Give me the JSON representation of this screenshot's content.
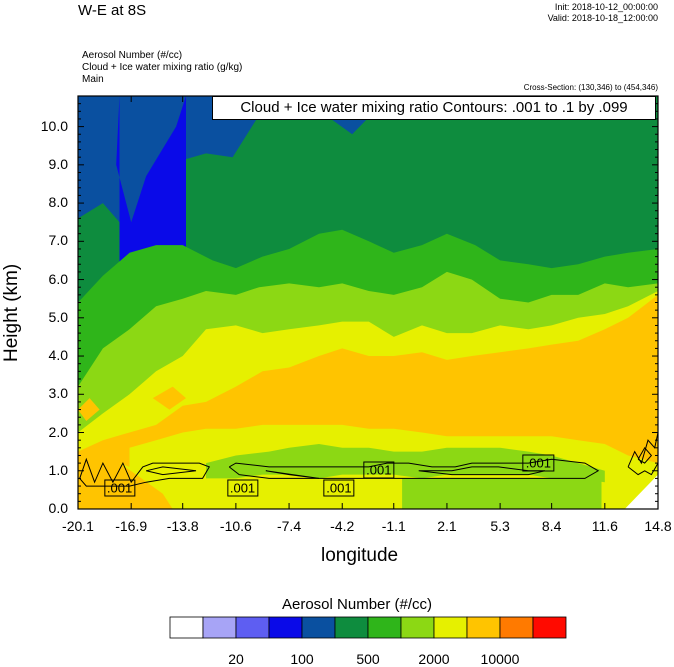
{
  "header": {
    "title": "W-E at 8S",
    "init": "Init: 2018-10-12_00:00:00",
    "valid": "Valid: 2018-10-18_12:00:00",
    "fields": [
      "Aerosol Number   (#/cc)",
      "Cloud + Ice water mixing ratio   (g/kg)",
      "Main"
    ],
    "cross_section": "Cross-Section: (130,346) to (454,346)"
  },
  "contour_banner": "Cloud + Ice water mixing ratio Contours: .001 to .1 by .099",
  "contour_labels": [
    ".001",
    ".001",
    ".001",
    ".001",
    ".001"
  ],
  "colorbar": {
    "title": "Aerosol Number  (#/cc)",
    "colors": [
      "#ffffff",
      "#a7a4f6",
      "#5e5ef2",
      "#0a0ae8",
      "#0a50a0",
      "#0e8c3e",
      "#2fb51a",
      "#8cd814",
      "#e6f000",
      "#ffc400",
      "#ff7a00",
      "#ff0a00"
    ],
    "labels": [
      "20",
      "100",
      "500",
      "2000",
      "10000"
    ]
  },
  "chart_data": {
    "type": "heatmap",
    "title": "W-E at 8S",
    "xlabel": "longitude",
    "ylabel": "Height (km)",
    "xlim": [
      -20.1,
      14.8
    ],
    "ylim": [
      0.0,
      10.8
    ],
    "x_ticks": [
      "-20.1",
      "-16.9",
      "-13.8",
      "-10.6",
      "-7.4",
      "-4.2",
      "-1.1",
      "2.1",
      "5.3",
      "8.4",
      "11.6",
      "14.8"
    ],
    "y_ticks": [
      "0.0",
      "1.0",
      "2.0",
      "3.0",
      "4.0",
      "5.0",
      "6.0",
      "7.0",
      "8.0",
      "9.0",
      "10.0"
    ],
    "x_tick_values": [
      -20.1,
      -16.9,
      -13.8,
      -10.6,
      -7.4,
      -4.2,
      -1.1,
      2.1,
      5.3,
      8.4,
      11.6,
      14.8
    ],
    "y_tick_values": [
      0,
      1,
      2,
      3,
      4,
      5,
      6,
      7,
      8,
      9,
      10
    ],
    "shaded_field": "Aerosol Number (#/cc)",
    "contour_field": "Cloud + Ice water mixing ratio (g/kg)",
    "contour_levels": [
      0.001,
      0.1
    ],
    "regions": [
      {
        "color_index": 4,
        "top": [
          [
            -20.1,
            10.8
          ],
          [
            14.8,
            10.8
          ]
        ]
      },
      {
        "color_index": 5,
        "top": [
          [
            -20.1,
            7.6
          ],
          [
            -18.6,
            8.0
          ],
          [
            -17.0,
            7.2
          ],
          [
            -15.8,
            8.4
          ],
          [
            -14.0,
            9.1
          ],
          [
            -12.4,
            9.3
          ],
          [
            -10.8,
            9.2
          ],
          [
            -9.2,
            10.3
          ],
          [
            -7.4,
            10.5
          ],
          [
            -5.2,
            10.3
          ],
          [
            -3.6,
            9.8
          ],
          [
            -1.8,
            10.6
          ],
          [
            1.0,
            10.3
          ],
          [
            4.0,
            10.6
          ],
          [
            8.0,
            10.8
          ],
          [
            14.8,
            10.8
          ]
        ]
      },
      {
        "color_index": 3,
        "top": [
          [
            -17.6,
            10.8
          ],
          [
            -17.8,
            9.0
          ],
          [
            -16.9,
            7.5
          ],
          [
            -16.0,
            8.7
          ],
          [
            -14.2,
            10.0
          ],
          [
            -13.6,
            10.8
          ]
        ]
      },
      {
        "color_index": 6,
        "top": [
          [
            -20.1,
            5.4
          ],
          [
            -18.6,
            6.1
          ],
          [
            -17.0,
            6.7
          ],
          [
            -15.4,
            6.9
          ],
          [
            -13.8,
            6.9
          ],
          [
            -12.0,
            6.5
          ],
          [
            -10.6,
            6.3
          ],
          [
            -9.0,
            6.6
          ],
          [
            -7.4,
            6.8
          ],
          [
            -5.6,
            7.2
          ],
          [
            -4.2,
            7.3
          ],
          [
            -2.6,
            7.0
          ],
          [
            -1.1,
            6.7
          ],
          [
            0.6,
            6.9
          ],
          [
            2.1,
            7.2
          ],
          [
            3.8,
            6.9
          ],
          [
            5.3,
            6.5
          ],
          [
            7.0,
            6.4
          ],
          [
            8.4,
            6.3
          ],
          [
            10.0,
            6.4
          ],
          [
            11.6,
            6.6
          ],
          [
            13.0,
            6.7
          ],
          [
            14.8,
            6.8
          ]
        ]
      },
      {
        "color_index": 7,
        "top": [
          [
            -20.1,
            3.2
          ],
          [
            -18.6,
            4.2
          ],
          [
            -17.0,
            4.7
          ],
          [
            -15.4,
            5.3
          ],
          [
            -13.8,
            5.5
          ],
          [
            -12.4,
            5.7
          ],
          [
            -10.6,
            5.6
          ],
          [
            -9.2,
            5.8
          ],
          [
            -7.4,
            5.9
          ],
          [
            -5.6,
            5.8
          ],
          [
            -4.2,
            5.9
          ],
          [
            -2.6,
            5.7
          ],
          [
            -1.1,
            5.6
          ],
          [
            0.6,
            5.8
          ],
          [
            2.1,
            6.2
          ],
          [
            3.6,
            6.0
          ],
          [
            5.3,
            5.5
          ],
          [
            7.0,
            5.4
          ],
          [
            8.4,
            5.6
          ],
          [
            10.0,
            5.6
          ],
          [
            11.6,
            5.9
          ],
          [
            13.0,
            5.8
          ],
          [
            14.8,
            5.9
          ]
        ]
      },
      {
        "color_index": 8,
        "top": [
          [
            -20.1,
            2.0
          ],
          [
            -18.6,
            2.5
          ],
          [
            -17.0,
            3.0
          ],
          [
            -15.4,
            3.6
          ],
          [
            -13.8,
            4.0
          ],
          [
            -12.4,
            4.7
          ],
          [
            -10.6,
            4.8
          ],
          [
            -9.0,
            4.6
          ],
          [
            -7.4,
            4.7
          ],
          [
            -5.6,
            4.8
          ],
          [
            -4.2,
            4.9
          ],
          [
            -2.6,
            4.9
          ],
          [
            -1.1,
            4.5
          ],
          [
            0.6,
            4.8
          ],
          [
            2.1,
            4.6
          ],
          [
            3.6,
            4.6
          ],
          [
            5.3,
            4.8
          ],
          [
            7.0,
            4.7
          ],
          [
            8.4,
            4.8
          ],
          [
            10.0,
            5.0
          ],
          [
            11.6,
            5.1
          ],
          [
            13.0,
            5.3
          ],
          [
            14.8,
            5.7
          ]
        ]
      },
      {
        "color_index": 9,
        "top": [
          [
            -20.1,
            1.5
          ],
          [
            -18.6,
            1.8
          ],
          [
            -17.0,
            2.0
          ],
          [
            -15.4,
            2.2
          ],
          [
            -13.8,
            2.7
          ],
          [
            -12.4,
            2.8
          ],
          [
            -10.6,
            3.2
          ],
          [
            -9.0,
            3.6
          ],
          [
            -7.4,
            3.7
          ],
          [
            -5.6,
            4.0
          ],
          [
            -4.2,
            4.2
          ],
          [
            -2.6,
            4.0
          ],
          [
            -1.1,
            4.0
          ],
          [
            0.6,
            4.1
          ],
          [
            2.1,
            3.9
          ],
          [
            3.6,
            4.0
          ],
          [
            5.3,
            4.1
          ],
          [
            7.0,
            4.2
          ],
          [
            8.4,
            4.3
          ],
          [
            10.0,
            4.4
          ],
          [
            11.6,
            4.7
          ],
          [
            13.0,
            5.0
          ],
          [
            14.8,
            5.6
          ]
        ]
      },
      {
        "color_index": 8,
        "top": [
          [
            -17.0,
            1.6
          ],
          [
            -15.4,
            1.8
          ],
          [
            -13.8,
            2.0
          ],
          [
            -12.4,
            2.1
          ],
          [
            -10.6,
            2.1
          ],
          [
            -9.0,
            2.2
          ],
          [
            -7.4,
            2.2
          ],
          [
            -5.6,
            2.2
          ],
          [
            -4.2,
            2.2
          ],
          [
            -2.6,
            2.1
          ],
          [
            -1.1,
            2.1
          ],
          [
            0.6,
            2.0
          ],
          [
            2.1,
            1.9
          ],
          [
            3.6,
            1.9
          ],
          [
            5.3,
            1.9
          ],
          [
            7.0,
            1.9
          ],
          [
            8.4,
            1.9
          ],
          [
            10.0,
            1.8
          ],
          [
            11.6,
            1.7
          ],
          [
            13.0,
            1.4
          ],
          [
            14.8,
            1.2
          ]
        ]
      },
      {
        "color_index": 7,
        "top": [
          [
            -12.4,
            1.2
          ],
          [
            -10.6,
            1.4
          ],
          [
            -8.6,
            1.5
          ],
          [
            -7.4,
            1.6
          ],
          [
            -5.6,
            1.7
          ],
          [
            -4.2,
            1.6
          ],
          [
            -2.6,
            1.6
          ],
          [
            -1.1,
            1.5
          ],
          [
            0.6,
            1.5
          ],
          [
            2.1,
            1.6
          ],
          [
            3.6,
            1.6
          ],
          [
            5.3,
            1.6
          ],
          [
            7.0,
            1.5
          ],
          [
            8.4,
            1.4
          ],
          [
            10.0,
            1.2
          ],
          [
            11.6,
            1.0
          ]
        ]
      },
      {
        "color_index": 8,
        "top": [
          [
            -20.1,
            1.4
          ],
          [
            -17.6,
            1.2
          ],
          [
            -16.4,
            1.0
          ],
          [
            -15.0,
            0.9
          ],
          [
            -13.8,
            0.9
          ],
          [
            -12.4,
            0.8
          ],
          [
            -10.6,
            0.8
          ],
          [
            -9.0,
            0.9
          ],
          [
            -7.4,
            0.9
          ],
          [
            -5.6,
            0.8
          ],
          [
            -4.2,
            0.9
          ],
          [
            -2.6,
            0.9
          ],
          [
            -1.1,
            0.9
          ],
          [
            0.6,
            0.8
          ],
          [
            2.1,
            0.9
          ],
          [
            3.6,
            0.9
          ],
          [
            5.3,
            0.9
          ],
          [
            7.0,
            0.9
          ],
          [
            8.4,
            0.8
          ],
          [
            10.0,
            0.8
          ],
          [
            11.6,
            0.7
          ],
          [
            13.0,
            0.9
          ],
          [
            14.8,
            1.2
          ]
        ]
      },
      {
        "color_index": 7,
        "top": [
          [
            -0.6,
            0.0
          ],
          [
            -0.6,
            0.8
          ],
          [
            11.4,
            0.8
          ],
          [
            11.4,
            0.0
          ]
        ],
        "closed": true
      },
      {
        "color_index": 9,
        "top": [
          [
            -20.1,
            0.0
          ],
          [
            -20.1,
            1.5
          ],
          [
            -18.6,
            1.5
          ],
          [
            -17.6,
            1.2
          ],
          [
            -16.6,
            0.9
          ],
          [
            -15.0,
            0.4
          ],
          [
            -14.4,
            0.0
          ]
        ],
        "closed": true
      },
      {
        "color_index": 9,
        "top": [
          [
            -20.1,
            2.6
          ],
          [
            -19.4,
            2.9
          ],
          [
            -18.8,
            2.6
          ],
          [
            -19.6,
            2.3
          ]
        ],
        "closed": true
      },
      {
        "color_index": 9,
        "top": [
          [
            -15.6,
            2.9
          ],
          [
            -14.4,
            3.2
          ],
          [
            -13.6,
            2.9
          ],
          [
            -14.6,
            2.6
          ]
        ],
        "closed": true
      },
      {
        "color_index": 0,
        "top": [
          [
            12.8,
            0.0
          ],
          [
            14.8,
            0.9
          ],
          [
            14.8,
            0.0
          ]
        ],
        "closed": true
      }
    ],
    "contours": [
      [
        [
          -20.0,
          0.8
        ],
        [
          -19.6,
          1.3
        ],
        [
          -19.1,
          0.7
        ],
        [
          -18.6,
          1.2
        ],
        [
          -18.0,
          0.7
        ],
        [
          -17.4,
          1.2
        ],
        [
          -16.9,
          0.7
        ],
        [
          -16.2,
          1.1
        ],
        [
          -15.6,
          1.2
        ],
        [
          -14.4,
          1.2
        ],
        [
          -12.8,
          1.2
        ],
        [
          -12.2,
          1.1
        ],
        [
          -12.6,
          0.8
        ],
        [
          -14.6,
          0.8
        ],
        [
          -16.0,
          0.7
        ],
        [
          -17.0,
          0.6
        ],
        [
          -18.6,
          0.6
        ],
        [
          -19.6,
          0.6
        ],
        [
          -20.0,
          0.8
        ]
      ],
      [
        [
          -16.0,
          1.0
        ],
        [
          -15.0,
          1.1
        ],
        [
          -13.0,
          1.0
        ],
        [
          -15.0,
          0.9
        ],
        [
          -16.0,
          1.0
        ]
      ],
      [
        [
          -11.0,
          1.1
        ],
        [
          -10.6,
          1.2
        ],
        [
          -8.6,
          1.1
        ],
        [
          -6.4,
          1.1
        ],
        [
          -4.2,
          1.1
        ],
        [
          -2.6,
          1.1
        ],
        [
          -1.5,
          1.2
        ],
        [
          -0.2,
          1.2
        ],
        [
          1.2,
          1.1
        ],
        [
          2.6,
          1.1
        ],
        [
          3.6,
          1.2
        ],
        [
          5.2,
          1.2
        ],
        [
          7.0,
          1.2
        ],
        [
          8.4,
          1.3
        ],
        [
          10.4,
          1.2
        ],
        [
          11.2,
          1.0
        ],
        [
          10.4,
          0.8
        ],
        [
          8.4,
          0.8
        ],
        [
          6.4,
          0.8
        ],
        [
          4.4,
          0.8
        ],
        [
          2.6,
          0.8
        ],
        [
          0.6,
          0.8
        ],
        [
          -1.1,
          0.8
        ],
        [
          -2.6,
          0.8
        ],
        [
          -4.2,
          0.8
        ],
        [
          -6.4,
          0.8
        ],
        [
          -8.6,
          0.8
        ],
        [
          -10.4,
          0.9
        ],
        [
          -11.0,
          1.1
        ]
      ],
      [
        [
          -8.8,
          1.0
        ],
        [
          -7.2,
          0.9
        ],
        [
          -5.6,
          0.8
        ],
        [
          -7.4,
          0.9
        ],
        [
          -8.8,
          1.0
        ]
      ],
      [
        [
          0.4,
          1.0
        ],
        [
          2.4,
          1.0
        ],
        [
          3.6,
          1.1
        ],
        [
          5.2,
          1.1
        ],
        [
          7.0,
          1.0
        ],
        [
          8.0,
          1.0
        ],
        [
          7.0,
          0.9
        ],
        [
          5.2,
          0.9
        ],
        [
          3.6,
          0.9
        ],
        [
          2.4,
          0.9
        ],
        [
          0.4,
          1.0
        ]
      ],
      [
        [
          13.0,
          1.1
        ],
        [
          13.4,
          1.5
        ],
        [
          13.8,
          1.2
        ],
        [
          14.2,
          1.8
        ],
        [
          14.6,
          1.6
        ],
        [
          14.8,
          2.0
        ],
        [
          14.8,
          1.2
        ],
        [
          14.4,
          0.9
        ],
        [
          14.0,
          1.0
        ],
        [
          13.6,
          0.9
        ],
        [
          13.0,
          1.1
        ]
      ],
      [
        [
          13.6,
          1.3
        ],
        [
          14.0,
          1.6
        ],
        [
          14.4,
          1.4
        ],
        [
          14.0,
          1.2
        ],
        [
          13.6,
          1.3
        ]
      ]
    ],
    "contour_label_positions": [
      [
        -17.6,
        0.55
      ],
      [
        -10.2,
        0.55
      ],
      [
        -4.4,
        0.55
      ],
      [
        -2.0,
        1.03
      ],
      [
        7.6,
        1.19
      ]
    ]
  }
}
